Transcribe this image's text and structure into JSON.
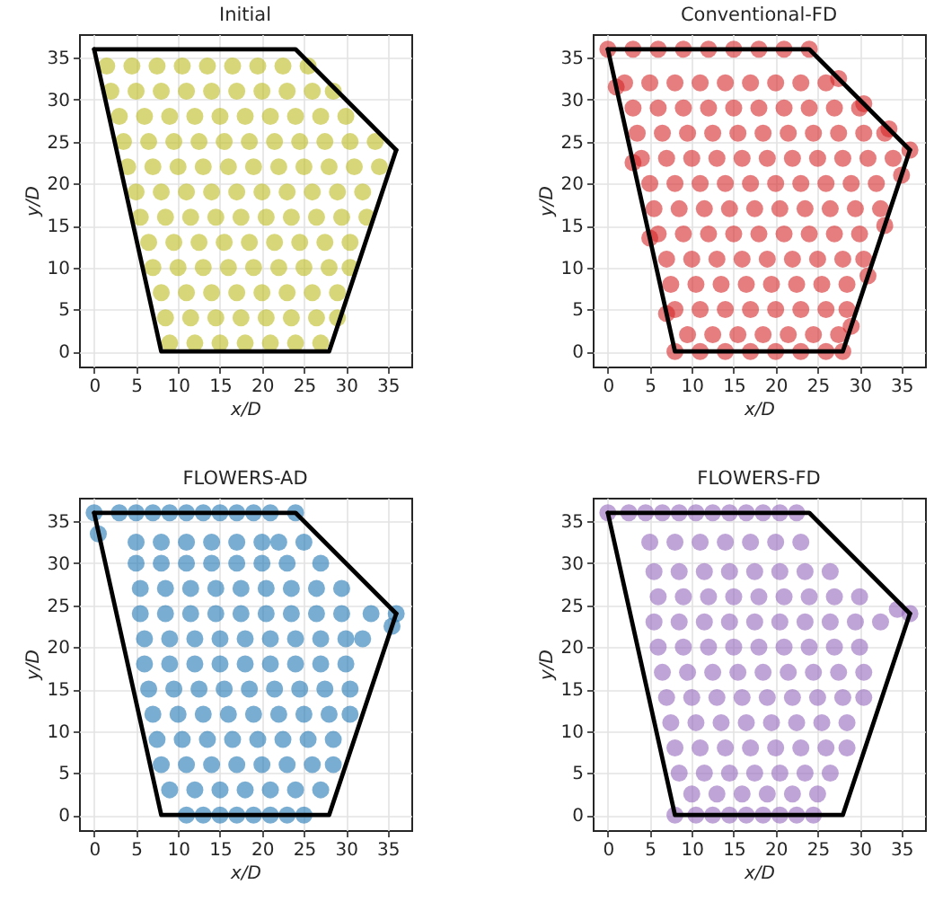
{
  "chart_data": [
    {
      "type": "scatter",
      "title": "Initial",
      "xlabel": "x/D",
      "ylabel": "y/D",
      "xlim": [
        -1.8,
        37.8
      ],
      "ylim": [
        -1.8,
        37.8
      ],
      "xticks": [
        0,
        5,
        10,
        15,
        20,
        25,
        30,
        35
      ],
      "yticks": [
        0,
        5,
        10,
        15,
        20,
        25,
        30,
        35
      ],
      "grid": true,
      "marker": "circle",
      "series": [
        {
          "color": "#bcbd22",
          "x": [
            9,
            12,
            15,
            18,
            21,
            24,
            27,
            8.5,
            11.5,
            14.5,
            17.5,
            20.5,
            23.5,
            26.5,
            29,
            8,
            11,
            14,
            17,
            20,
            23,
            26,
            29,
            7,
            10,
            13,
            16,
            19,
            22,
            25,
            28,
            30.5,
            6.5,
            9.5,
            12.5,
            15.5,
            18.5,
            21.5,
            24.5,
            27.5,
            30.5,
            5.5,
            8.5,
            11.5,
            14.5,
            17.5,
            20.5,
            23.5,
            26.5,
            29.5,
            32.5,
            5,
            8,
            11,
            14,
            17,
            20,
            23,
            26,
            29,
            32,
            4,
            7,
            10,
            13,
            16,
            19,
            22,
            25,
            28,
            31,
            34,
            3.5,
            6.5,
            9.5,
            12.5,
            15.5,
            18.5,
            21.5,
            24.5,
            27.5,
            30.5,
            33.5,
            3,
            6,
            9,
            12,
            15,
            18,
            21,
            24,
            27,
            30,
            2,
            5,
            8,
            11,
            14,
            17,
            20,
            23,
            26,
            28.5,
            1.5,
            4.5,
            7.5,
            10.5,
            13.5,
            16.5,
            19.5,
            22.5,
            25.5
          ],
          "values": [
            1,
            1,
            1,
            1,
            1,
            1,
            1,
            4,
            4,
            4,
            4,
            4,
            4,
            4,
            4,
            7,
            7,
            7,
            7,
            7,
            7,
            7,
            7,
            10,
            10,
            10,
            10,
            10,
            10,
            10,
            10,
            10,
            13,
            13,
            13,
            13,
            13,
            13,
            13,
            13,
            13,
            16,
            16,
            16,
            16,
            16,
            16,
            16,
            16,
            16,
            16,
            19,
            19,
            19,
            19,
            19,
            19,
            19,
            19,
            19,
            19,
            22,
            22,
            22,
            22,
            22,
            22,
            22,
            22,
            22,
            22,
            22,
            25,
            25,
            25,
            25,
            25,
            25,
            25,
            25,
            25,
            25,
            25,
            28,
            28,
            28,
            28,
            28,
            28,
            28,
            28,
            28,
            28,
            31,
            31,
            31,
            31,
            31,
            31,
            31,
            31,
            31,
            31,
            34,
            34,
            34,
            34,
            34,
            34,
            34,
            34,
            34
          ]
        },
        {
          "type": "line",
          "marker": "none",
          "color": "#000000",
          "x": [
            0,
            8,
            28,
            36
          ],
          "values": [
            36,
            0,
            0,
            24
          ]
        },
        {
          "type": "line",
          "marker": "none",
          "color": "#000000",
          "x": [
            0,
            24,
            36
          ],
          "values": [
            36,
            36,
            24
          ]
        }
      ]
    },
    {
      "type": "scatter",
      "title": "Conventional-FD",
      "xlabel": "x/D",
      "ylabel": "y/D",
      "xlim": [
        -1.8,
        37.8
      ],
      "ylim": [
        -1.8,
        37.8
      ],
      "xticks": [
        0,
        5,
        10,
        15,
        20,
        25,
        30,
        35
      ],
      "yticks": [
        0,
        5,
        10,
        15,
        20,
        25,
        30,
        35
      ],
      "grid": true,
      "marker": "circle",
      "series": [
        {
          "color": "#d62728",
          "x": [
            9.5,
            12.5,
            15.5,
            18.5,
            21.5,
            24.5,
            27.5,
            8,
            11,
            14,
            17,
            20,
            23,
            26,
            28.5,
            7.5,
            10.5,
            13.5,
            16.5,
            19.5,
            22.5,
            25.5,
            28.5,
            7,
            10,
            13,
            16,
            19,
            22,
            25,
            28,
            30.5,
            6,
            9,
            12,
            15,
            18,
            21,
            24,
            27,
            30,
            5.5,
            8.5,
            11.5,
            14.5,
            17.5,
            20.5,
            23.5,
            26.5,
            29.5,
            32.5,
            5,
            8,
            11,
            14,
            17,
            20,
            23,
            26,
            29,
            32,
            4,
            7,
            10,
            13,
            16,
            19,
            22,
            25,
            28,
            31,
            34,
            3.5,
            6.5,
            9.5,
            12.5,
            15.5,
            18.5,
            21.5,
            24.5,
            27.5,
            30.5,
            33,
            3,
            6,
            9,
            12,
            15,
            18,
            21,
            24,
            27,
            30,
            2,
            5,
            8,
            11,
            14,
            17,
            20,
            23,
            26,
            0,
            3,
            6,
            9,
            12,
            15,
            18,
            21,
            24,
            8,
            11,
            14,
            17,
            20,
            23,
            26,
            28,
            1,
            3,
            5,
            7,
            36,
            33.5,
            30.5,
            27.5,
            35,
            33,
            31,
            29
          ],
          "values": [
            2,
            2,
            2,
            2,
            2,
            2,
            2,
            5,
            5,
            5,
            5,
            5,
            5,
            5,
            5,
            8,
            8,
            8,
            8,
            8,
            8,
            8,
            8,
            11,
            11,
            11,
            11,
            11,
            11,
            11,
            11,
            11,
            14,
            14,
            14,
            14,
            14,
            14,
            14,
            14,
            14,
            17,
            17,
            17,
            17,
            17,
            17,
            17,
            17,
            17,
            17,
            20,
            20,
            20,
            20,
            20,
            20,
            20,
            20,
            20,
            20,
            23,
            23,
            23,
            23,
            23,
            23,
            23,
            23,
            23,
            23,
            23,
            26,
            26,
            26,
            26,
            26,
            26,
            26,
            26,
            26,
            26,
            26,
            29,
            29,
            29,
            29,
            29,
            29,
            29,
            29,
            29,
            29,
            32,
            32,
            32,
            32,
            32,
            32,
            32,
            32,
            32,
            36,
            36,
            36,
            36,
            36,
            36,
            36,
            36,
            36,
            0,
            0,
            0,
            0,
            0,
            0,
            0,
            0,
            31.5,
            22.5,
            13.5,
            4.5,
            24,
            26.5,
            29.5,
            32.5,
            21,
            15,
            9,
            3
          ]
        },
        {
          "type": "line",
          "marker": "none",
          "color": "#000000",
          "x": [
            0,
            8,
            28,
            36
          ],
          "values": [
            36,
            0,
            0,
            24
          ]
        },
        {
          "type": "line",
          "marker": "none",
          "color": "#000000",
          "x": [
            0,
            24,
            36
          ],
          "values": [
            36,
            36,
            24
          ]
        }
      ]
    },
    {
      "type": "scatter",
      "title": "FLOWERS-AD",
      "xlabel": "x/D",
      "ylabel": "y/D",
      "xlim": [
        -1.8,
        37.8
      ],
      "ylim": [
        -1.8,
        37.8
      ],
      "xticks": [
        0,
        5,
        10,
        15,
        20,
        25,
        30,
        35
      ],
      "yticks": [
        0,
        5,
        10,
        15,
        20,
        25,
        30,
        35
      ],
      "grid": true,
      "marker": "circle",
      "series": [
        {
          "color": "#1f77b4",
          "x": [
            9,
            12,
            15,
            18,
            21,
            24,
            27,
            8,
            11,
            14,
            17,
            20,
            23,
            26,
            28.5,
            7.5,
            10.5,
            13.5,
            16.5,
            19.5,
            22.5,
            25.5,
            28.5,
            7,
            10,
            13,
            16,
            19,
            22,
            25,
            28,
            30.5,
            6.5,
            9.5,
            12.5,
            15.5,
            18.5,
            21.5,
            24.5,
            27.5,
            30.5,
            6,
            9,
            12,
            15,
            18,
            21,
            24,
            27,
            30,
            6,
            9,
            12,
            15,
            18,
            21,
            24,
            27,
            30,
            32,
            5.5,
            8.5,
            11.5,
            14.5,
            17.5,
            20.5,
            23.5,
            26.5,
            29.5,
            33,
            5.5,
            8.5,
            11.5,
            14.5,
            17.5,
            20.5,
            23.5,
            26.5,
            29.5,
            5,
            8,
            11,
            14,
            17,
            20,
            23,
            27,
            5,
            8,
            11,
            14,
            17,
            20,
            22,
            25,
            0,
            3,
            5,
            7,
            9,
            11,
            13,
            15,
            17,
            19,
            21,
            24,
            11,
            13,
            15,
            17,
            19,
            21,
            23,
            25,
            36,
            35.5,
            0.5
          ],
          "values": [
            3,
            3,
            3,
            3,
            3,
            3,
            3,
            6,
            6,
            6,
            6,
            6,
            6,
            6,
            6,
            9,
            9,
            9,
            9,
            9,
            9,
            9,
            9,
            12,
            12,
            12,
            12,
            12,
            12,
            12,
            12,
            12,
            15,
            15,
            15,
            15,
            15,
            15,
            15,
            15,
            15,
            18,
            18,
            18,
            18,
            18,
            18,
            18,
            18,
            18,
            21,
            21,
            21,
            21,
            21,
            21,
            21,
            21,
            21,
            21,
            24,
            24,
            24,
            24,
            24,
            24,
            24,
            24,
            24,
            24,
            27,
            27,
            27,
            27,
            27,
            27,
            27,
            27,
            27,
            30,
            30,
            30,
            30,
            30,
            30,
            30,
            30,
            32.5,
            32.5,
            32.5,
            32.5,
            32.5,
            32.5,
            32.5,
            32.5,
            36,
            36,
            36,
            36,
            36,
            36,
            36,
            36,
            36,
            36,
            36,
            36,
            0,
            0,
            0,
            0,
            0,
            0,
            0,
            0,
            24,
            22.5,
            33.5
          ]
        },
        {
          "type": "line",
          "marker": "none",
          "color": "#000000",
          "x": [
            0,
            8,
            28,
            36
          ],
          "values": [
            36,
            0,
            0,
            24
          ]
        },
        {
          "type": "line",
          "marker": "none",
          "color": "#000000",
          "x": [
            0,
            24,
            36
          ],
          "values": [
            36,
            36,
            24
          ]
        }
      ]
    },
    {
      "type": "scatter",
      "title": "FLOWERS-FD",
      "xlabel": "x/D",
      "ylabel": "y/D",
      "xlim": [
        -1.8,
        37.8
      ],
      "ylim": [
        -1.8,
        37.8
      ],
      "xticks": [
        0,
        5,
        10,
        15,
        20,
        25,
        30,
        35
      ],
      "yticks": [
        0,
        5,
        10,
        15,
        20,
        25,
        30,
        35
      ],
      "grid": true,
      "marker": "circle",
      "series": [
        {
          "color": "#9467bd",
          "x": [
            10,
            13,
            16,
            19,
            22,
            25,
            8.5,
            11.5,
            14.5,
            17.5,
            20.5,
            23.5,
            26.5,
            8,
            11,
            14,
            17,
            20,
            23,
            26,
            28.5,
            7.5,
            10.5,
            13.5,
            16.5,
            19.5,
            22.5,
            25.5,
            28.5,
            7,
            10,
            13,
            16,
            19,
            22,
            25,
            28,
            30.5,
            6.5,
            9.5,
            12.5,
            15.5,
            18.5,
            21.5,
            24.5,
            27.5,
            30.5,
            6,
            9,
            12,
            15,
            18,
            21,
            24,
            27,
            30,
            5.5,
            8.5,
            11.5,
            14.5,
            17.5,
            20.5,
            23.5,
            26.5,
            29.5,
            32.5,
            6,
            9,
            12,
            15,
            18,
            21,
            24,
            27,
            30,
            5.5,
            8.5,
            11.5,
            14.5,
            17.5,
            20.5,
            23.5,
            26.5,
            5,
            8,
            11,
            14,
            17,
            20,
            23,
            0,
            2.5,
            4.5,
            6.5,
            8.5,
            10.5,
            12.5,
            14.5,
            16.5,
            18.5,
            20.5,
            22.5,
            8,
            10.5,
            12.5,
            14.5,
            16.5,
            18.5,
            20.5,
            22.5,
            24.5,
            36,
            34.5
          ],
          "values": [
            2.5,
            2.5,
            2.5,
            2.5,
            2.5,
            2.5,
            5,
            5,
            5,
            5,
            5,
            5,
            5,
            8,
            8,
            8,
            8,
            8,
            8,
            8,
            8,
            11,
            11,
            11,
            11,
            11,
            11,
            11,
            11,
            14,
            14,
            14,
            14,
            14,
            14,
            14,
            14,
            14,
            17,
            17,
            17,
            17,
            17,
            17,
            17,
            17,
            17,
            20,
            20,
            20,
            20,
            20,
            20,
            20,
            20,
            20,
            23,
            23,
            23,
            23,
            23,
            23,
            23,
            23,
            23,
            23,
            26,
            26,
            26,
            26,
            26,
            26,
            26,
            26,
            26,
            29,
            29,
            29,
            29,
            29,
            29,
            29,
            29,
            32.5,
            32.5,
            32.5,
            32.5,
            32.5,
            32.5,
            32.5,
            36,
            36,
            36,
            36,
            36,
            36,
            36,
            36,
            36,
            36,
            36,
            36,
            0,
            0,
            0,
            0,
            0,
            0,
            0,
            0,
            0,
            24,
            24.5
          ]
        },
        {
          "type": "line",
          "marker": "none",
          "color": "#000000",
          "x": [
            0,
            8,
            28,
            36
          ],
          "values": [
            36,
            0,
            0,
            24
          ]
        },
        {
          "type": "line",
          "marker": "none",
          "color": "#000000",
          "x": [
            0,
            24,
            36
          ],
          "values": [
            36,
            36,
            24
          ]
        }
      ]
    }
  ]
}
